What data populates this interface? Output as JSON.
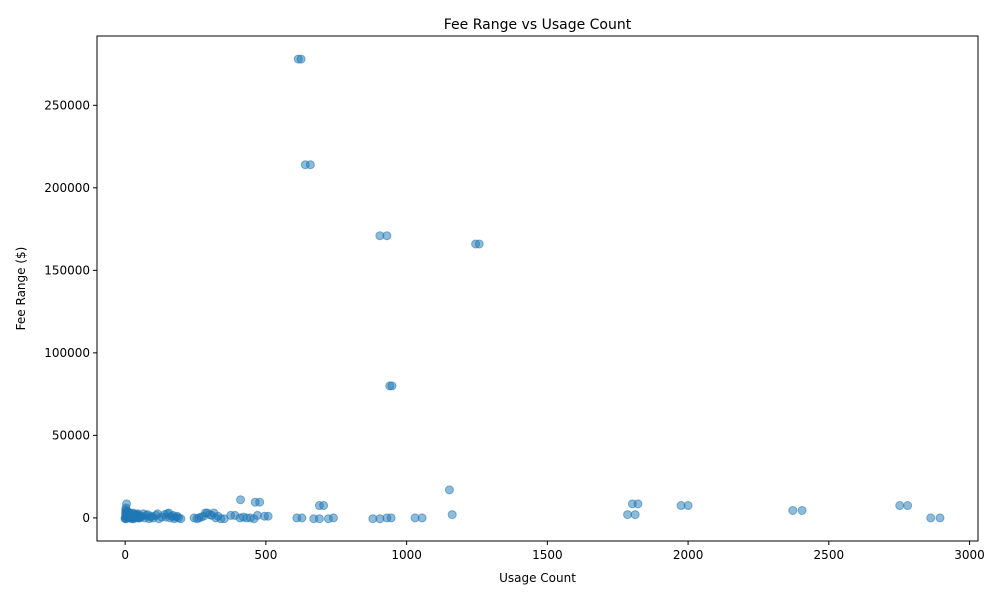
{
  "chart_data": {
    "type": "scatter",
    "title": "Fee Range vs Usage Count",
    "xlabel": "Usage Count",
    "ylabel": "Fee Range ($)",
    "xlim": [
      -100,
      3030
    ],
    "ylim": [
      -14000,
      292000
    ],
    "xticks": [
      0,
      500,
      1000,
      1500,
      2000,
      2500,
      3000
    ],
    "yticks": [
      0,
      50000,
      100000,
      150000,
      200000,
      250000
    ],
    "xtick_labels": [
      "0",
      "500",
      "1000",
      "1500",
      "2000",
      "2500",
      "3000"
    ],
    "ytick_labels": [
      "0",
      "50000",
      "100000",
      "150000",
      "200000",
      "250000"
    ],
    "grid": false,
    "color": "#1f77b4",
    "series": [
      {
        "x": [
          615,
          625,
          640,
          658,
          905,
          930,
          940,
          948,
          1245,
          1258,
          1152,
          1162,
          410,
          462,
          478,
          690,
          705,
          1802,
          1822,
          1975,
          2000,
          2372,
          2405,
          2752,
          2780,
          1785,
          1812,
          610,
          628,
          670,
          690,
          722,
          740,
          880,
          905,
          930,
          945,
          1030,
          1055,
          2862,
          2895,
          375,
          390,
          408,
          420,
          432,
          445,
          458,
          470,
          495,
          508,
          245,
          255,
          262,
          270,
          278,
          285,
          292,
          300,
          308,
          315,
          322,
          330,
          340,
          352,
          140,
          145,
          150,
          155,
          160,
          165,
          170,
          175,
          180,
          185,
          190,
          198,
          60,
          65,
          70,
          75,
          80,
          85,
          90,
          95,
          100,
          110,
          115,
          120,
          130,
          0,
          2,
          4,
          5,
          6,
          8,
          10,
          12,
          14,
          16,
          18,
          20,
          22,
          25,
          28,
          30,
          32,
          35,
          38,
          40,
          42,
          45,
          48,
          50,
          55,
          0,
          1,
          2,
          3,
          4,
          6,
          8,
          10,
          13,
          15,
          17,
          20,
          25,
          30,
          36,
          40,
          45,
          52,
          3,
          5,
          7,
          9,
          11,
          14,
          18,
          22,
          28,
          33,
          38,
          44
        ],
        "y": [
          278000,
          278000,
          214000,
          214000,
          171000,
          171000,
          80000,
          80000,
          166000,
          166000,
          17000,
          2000,
          11000,
          9500,
          9500,
          7500,
          7500,
          8500,
          8500,
          7500,
          7500,
          4500,
          4500,
          7500,
          7500,
          2000,
          2000,
          0,
          0,
          -500,
          -500,
          -500,
          0,
          -500,
          -500,
          0,
          0,
          0,
          0,
          0,
          0,
          1500,
          1500,
          0,
          500,
          0,
          0,
          -500,
          1500,
          1000,
          1000,
          0,
          -500,
          0,
          500,
          1000,
          3000,
          3000,
          2000,
          1500,
          3000,
          0,
          1000,
          -500,
          -500,
          2000,
          500,
          2500,
          3000,
          0,
          1000,
          1500,
          -500,
          500,
          1000,
          0,
          -500,
          1000,
          2500,
          0,
          1500,
          2000,
          -500,
          500,
          1000,
          0,
          1500,
          2500,
          -500,
          500,
          0,
          1000,
          2000,
          8500,
          3500,
          500,
          1500,
          2500,
          3000,
          0,
          1000,
          2000,
          500,
          1500,
          2500,
          -500,
          0,
          1000,
          2000,
          500,
          1500,
          2500,
          0,
          1000,
          500,
          -500,
          3000,
          5000,
          6000,
          4000,
          2000,
          1000,
          3500,
          500,
          1500,
          2500,
          0,
          -500,
          1000,
          500,
          1500,
          2000,
          0,
          -500,
          500,
          1500,
          2500,
          3500,
          0,
          1000,
          2000,
          3000,
          500,
          1500,
          0
        ]
      }
    ]
  }
}
